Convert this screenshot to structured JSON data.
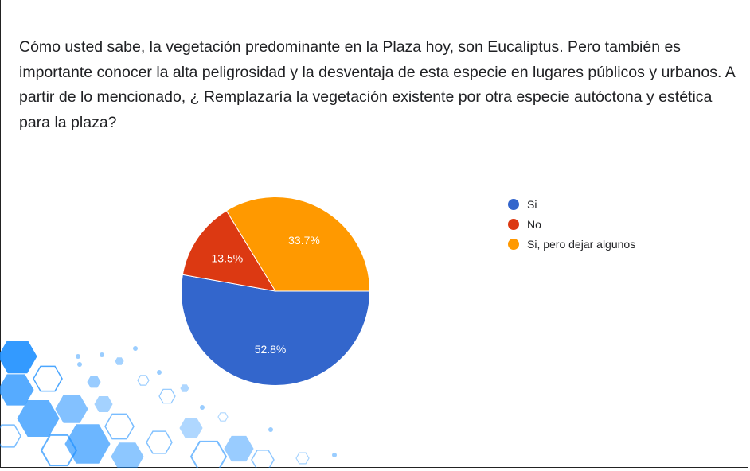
{
  "question": "Cómo usted sabe, la vegetación predominante en la Plaza hoy, son Eucaliptus. Pero también es importante conocer la alta peligrosidad y la desventaja de esta especie en lugares públicos y urbanos. A partir de lo mencionado, ¿ Remplazaría la vegetación existente por otra especie autóctona y estética para la plaza?",
  "chart_data": {
    "type": "pie",
    "categories": [
      "Si",
      "No",
      "Si, pero dejar algunos"
    ],
    "values": [
      52.8,
      13.5,
      33.7
    ],
    "labels": [
      "52.8%",
      "13.5%",
      "33.7%"
    ],
    "colors": [
      "#3366cc",
      "#dc3912",
      "#ff9900"
    ],
    "legend": "right"
  },
  "decoration": {
    "icon": "hexagon-pattern-decoration",
    "color": "#1e90ff"
  }
}
